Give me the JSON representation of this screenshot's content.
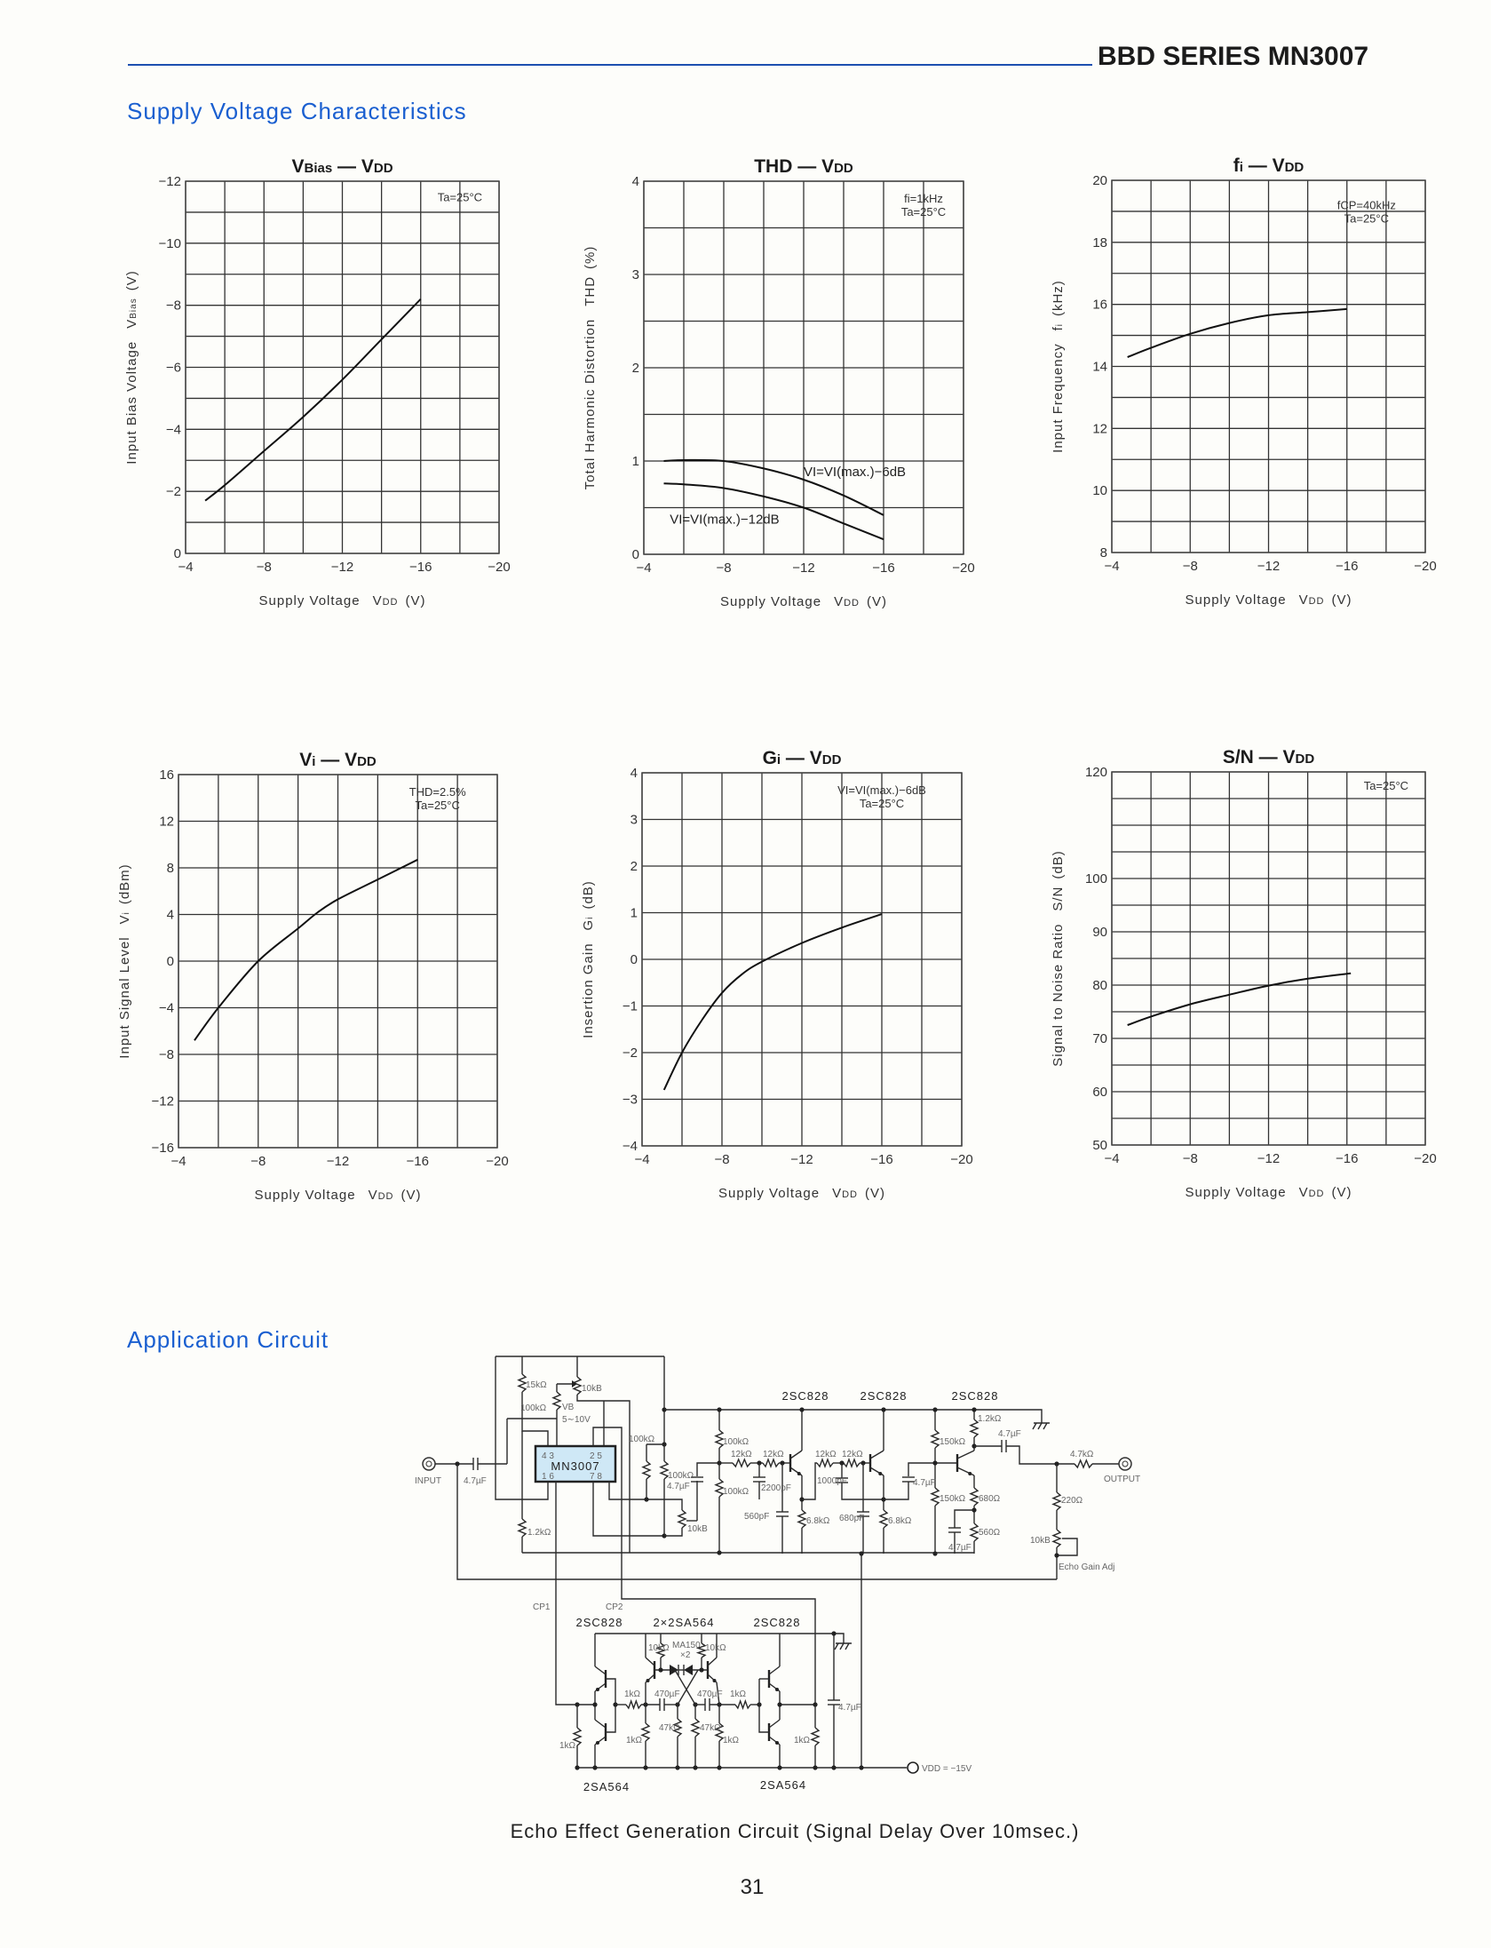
{
  "header": {
    "series_title": "BBD SERIES MN3007"
  },
  "sections": {
    "supply_voltage": "Supply Voltage Characteristics",
    "application": "Application Circuit"
  },
  "colors": {
    "accent_blue": "#1a5fd0",
    "annotation_fill": "#d3ebf7",
    "rule": "#1d4fb0"
  },
  "chart_data": [
    {
      "type": "line",
      "title": {
        "main1": "V",
        "sub1": "Bias",
        "dash": " — ",
        "main2": "V",
        "sub2": "DD"
      },
      "xlabel": {
        "text": "Supply Voltage",
        "sym": "V",
        "sub": "DD",
        "unit": "(V)"
      },
      "ylabel": {
        "text": "Input Bias Voltage",
        "sym": "V",
        "sub": "Bias",
        "unit": "(V)"
      },
      "xlim": [
        -4,
        -20
      ],
      "ylim": [
        0,
        -12
      ],
      "grid": true,
      "grid_step": [
        -2,
        -1
      ],
      "xticks": [
        -4,
        -8,
        -12,
        -16,
        -20
      ],
      "xtick_labels": [
        "−4",
        "−8",
        "−12",
        "−16",
        "−20"
      ],
      "yticks": [
        -12,
        -10,
        -8,
        -6,
        -4,
        -2,
        0
      ],
      "ytick_labels": [
        "−12",
        "−10",
        "−8",
        "−6",
        "−4",
        "−2",
        "0"
      ],
      "annotation": [
        "Ta=25°C"
      ],
      "annotation_placement": "top-right",
      "series": [
        {
          "name": "",
          "x": [
            -5,
            -6,
            -8,
            -10,
            -12,
            -14,
            -16
          ],
          "y": [
            -1.7,
            -2.2,
            -3.3,
            -4.4,
            -5.6,
            -6.9,
            -8.2
          ]
        }
      ]
    },
    {
      "type": "line",
      "title": {
        "main1": "THD",
        "sub1": "",
        "dash": " — ",
        "main2": "V",
        "sub2": "DD"
      },
      "xlabel": {
        "text": "Supply Voltage",
        "sym": "V",
        "sub": "DD",
        "unit": "(V)"
      },
      "ylabel": {
        "text": "Total Harmonic Distortion",
        "sym": "THD",
        "sub": "",
        "unit": "(%)"
      },
      "xlim": [
        -4,
        -20
      ],
      "ylim": [
        0,
        4
      ],
      "grid": true,
      "grid_step": [
        -2,
        0.5
      ],
      "xticks": [
        -4,
        -8,
        -12,
        -16,
        -20
      ],
      "xtick_labels": [
        "−4",
        "−8",
        "−12",
        "−16",
        "−20"
      ],
      "yticks": [
        4,
        3,
        2,
        1,
        0
      ],
      "ytick_labels": [
        "4",
        "3",
        "2",
        "1",
        "0"
      ],
      "annotation": [
        "fi=1kHz",
        "Ta=25°C"
      ],
      "annotation_placement": "top-right",
      "series": [
        {
          "name": "VI=VI(max.)−6dB",
          "x": [
            -5,
            -6,
            -8,
            -10,
            -12,
            -14,
            -16
          ],
          "y": [
            1.0,
            1.01,
            1.0,
            0.92,
            0.8,
            0.63,
            0.42
          ]
        },
        {
          "name": "VI=VI(max.)−12dB",
          "x": [
            -5,
            -6,
            -8,
            -10,
            -12,
            -14,
            -16
          ],
          "y": [
            0.76,
            0.75,
            0.71,
            0.62,
            0.5,
            0.33,
            0.16
          ]
        }
      ]
    },
    {
      "type": "line",
      "title": {
        "main1": "f",
        "sub1": "i",
        "dash": " — ",
        "main2": "V",
        "sub2": "DD"
      },
      "xlabel": {
        "text": "Supply Voltage",
        "sym": "V",
        "sub": "DD",
        "unit": "(V)"
      },
      "ylabel": {
        "text": "Input Frequency",
        "sym": "f",
        "sub": "i",
        "unit": "(kHz)"
      },
      "xlim": [
        -4,
        -20
      ],
      "ylim": [
        8,
        20
      ],
      "grid": true,
      "grid_step": [
        -2,
        1
      ],
      "xticks": [
        -4,
        -8,
        -12,
        -16,
        -20
      ],
      "xtick_labels": [
        "−4",
        "−8",
        "−12",
        "−16",
        "−20"
      ],
      "yticks": [
        20,
        18,
        16,
        14,
        12,
        10,
        8
      ],
      "ytick_labels": [
        "20",
        "18",
        "16",
        "14",
        "12",
        "10",
        "8"
      ],
      "annotation": [
        "fCP=40kHz",
        "Ta=25°C"
      ],
      "annotation_placement": "top-right",
      "series": [
        {
          "name": "",
          "x": [
            -4.8,
            -6,
            -8,
            -10,
            -12,
            -14,
            -16
          ],
          "y": [
            14.3,
            14.6,
            15.05,
            15.4,
            15.65,
            15.75,
            15.85
          ]
        }
      ]
    },
    {
      "type": "line",
      "title": {
        "main1": "V",
        "sub1": "i",
        "dash": " — ",
        "main2": "V",
        "sub2": "DD"
      },
      "xlabel": {
        "text": "Supply Voltage",
        "sym": "V",
        "sub": "DD",
        "unit": "(V)"
      },
      "ylabel": {
        "text": "Input Signal Level",
        "sym": "V",
        "sub": "i",
        "unit": "(dBm)"
      },
      "xlim": [
        -4,
        -20
      ],
      "ylim": [
        -16,
        16
      ],
      "grid": true,
      "grid_step": [
        -2,
        4
      ],
      "xticks": [
        -4,
        -8,
        -12,
        -16,
        -20
      ],
      "xtick_labels": [
        "−4",
        "−8",
        "−12",
        "−16",
        "−20"
      ],
      "yticks": [
        16,
        12,
        8,
        4,
        0,
        -4,
        -8,
        -12,
        -16
      ],
      "ytick_labels": [
        "16",
        "12",
        "8",
        "4",
        "0",
        "−4",
        "−8",
        "−12",
        "−16"
      ],
      "annotation": [
        "THD=2.5%",
        "Ta=25°C"
      ],
      "annotation_placement": "top-right",
      "series": [
        {
          "name": "",
          "x": [
            -4.8,
            -6,
            -8,
            -10,
            -11,
            -12,
            -14,
            -16
          ],
          "y": [
            -6.8,
            -4,
            0,
            2.8,
            4.2,
            5.3,
            7,
            8.7
          ]
        }
      ]
    },
    {
      "type": "line",
      "title": {
        "main1": "G",
        "sub1": "i",
        "dash": " — ",
        "main2": "V",
        "sub2": "DD"
      },
      "xlabel": {
        "text": "Supply Voltage",
        "sym": "V",
        "sub": "DD",
        "unit": "(V)"
      },
      "ylabel": {
        "text": "Insertion Gain",
        "sym": "G",
        "sub": "i",
        "unit": "(dB)"
      },
      "xlim": [
        -4,
        -20
      ],
      "ylim": [
        -4,
        4
      ],
      "grid": true,
      "grid_step": [
        -2,
        1
      ],
      "xticks": [
        -4,
        -8,
        -12,
        -16,
        -20
      ],
      "xtick_labels": [
        "−4",
        "−8",
        "−12",
        "−16",
        "−20"
      ],
      "yticks": [
        4,
        3,
        2,
        1,
        0,
        -1,
        -2,
        -3,
        -4
      ],
      "ytick_labels": [
        "4",
        "3",
        "2",
        "1",
        "0",
        "−1",
        "−2",
        "−3",
        "−4"
      ],
      "annotation": [
        "VI=VI(max.)−6dB",
        "Ta=25°C"
      ],
      "annotation_placement": "top-right",
      "series": [
        {
          "name": "",
          "x": [
            -5.1,
            -6,
            -7,
            -8,
            -9,
            -10,
            -12,
            -14,
            -16
          ],
          "y": [
            -2.8,
            -2,
            -1.3,
            -0.72,
            -0.32,
            -0.05,
            0.35,
            0.68,
            0.97
          ]
        }
      ]
    },
    {
      "type": "line",
      "title": {
        "main1": "S/N",
        "sub1": "",
        "dash": " — ",
        "main2": "V",
        "sub2": "DD"
      },
      "xlabel": {
        "text": "Supply Voltage",
        "sym": "V",
        "sub": "DD",
        "unit": "(V)"
      },
      "ylabel": {
        "text": "Signal to Noise Ratio",
        "sym": "S/N",
        "sub": "",
        "unit": "(dB)"
      },
      "xlim": [
        -4,
        -20
      ],
      "ylim": [
        50,
        120
      ],
      "grid": true,
      "grid_step": [
        -2,
        5
      ],
      "xticks": [
        -4,
        -8,
        -12,
        -16,
        -20
      ],
      "xtick_labels": [
        "−4",
        "−8",
        "−12",
        "−16",
        "−20"
      ],
      "yticks": [
        120,
        100,
        90,
        80,
        70,
        60,
        50
      ],
      "ytick_labels": [
        "120",
        "100",
        "90",
        "80",
        "70",
        "60",
        "50"
      ],
      "annotation": [
        "Ta=25°C"
      ],
      "annotation_placement": "top-right",
      "series": [
        {
          "name": "",
          "x": [
            -4.8,
            -6,
            -8,
            -10,
            -12,
            -14,
            -16.2
          ],
          "y": [
            72.5,
            74.1,
            76.4,
            78.2,
            79.9,
            81.2,
            82.2
          ]
        }
      ]
    }
  ],
  "circuit": {
    "caption": "Echo Effect Generation Circuit (Signal Delay Over 10msec.)",
    "labels": [
      "15kΩ",
      "10kB",
      "100kΩ",
      "VB",
      "5∼10V",
      "MN3007",
      "4 3",
      "2 5",
      "1 6",
      "7 8",
      "INPUT",
      "4.7µF",
      "1.2kΩ",
      "100kΩ",
      "100kΩ",
      "4.7µF",
      "10kB",
      "100kΩ",
      "100kΩ",
      "12kΩ",
      "12kΩ",
      "2200pF",
      "560pF",
      "2SC828",
      "2SC828",
      "2SC828",
      "12kΩ",
      "12kΩ",
      "1000pF",
      "680pF",
      "6.8kΩ",
      "6.8kΩ",
      "4.7µF",
      "150kΩ",
      "150kΩ",
      "1.2kΩ",
      "4.7µF",
      "680Ω",
      "560Ω",
      "4.7µF",
      "4.7kΩ",
      "OUTPUT",
      "220Ω",
      "10kB",
      "Echo Gain Adj",
      "CP1",
      "CP2",
      "2SC828",
      "2×2SA564",
      "2SC828",
      "10kΩ",
      "MA150",
      "×2",
      "10kΩ",
      "1kΩ",
      "470µF",
      "470µF",
      "1kΩ",
      "47kΩ",
      "47kΩ",
      "1kΩ",
      "1kΩ",
      "1kΩ",
      "1kΩ",
      "4.7µF",
      "VDD = −15V",
      "2SA564",
      "2SA564"
    ]
  },
  "footer": {
    "page_number": "31"
  }
}
